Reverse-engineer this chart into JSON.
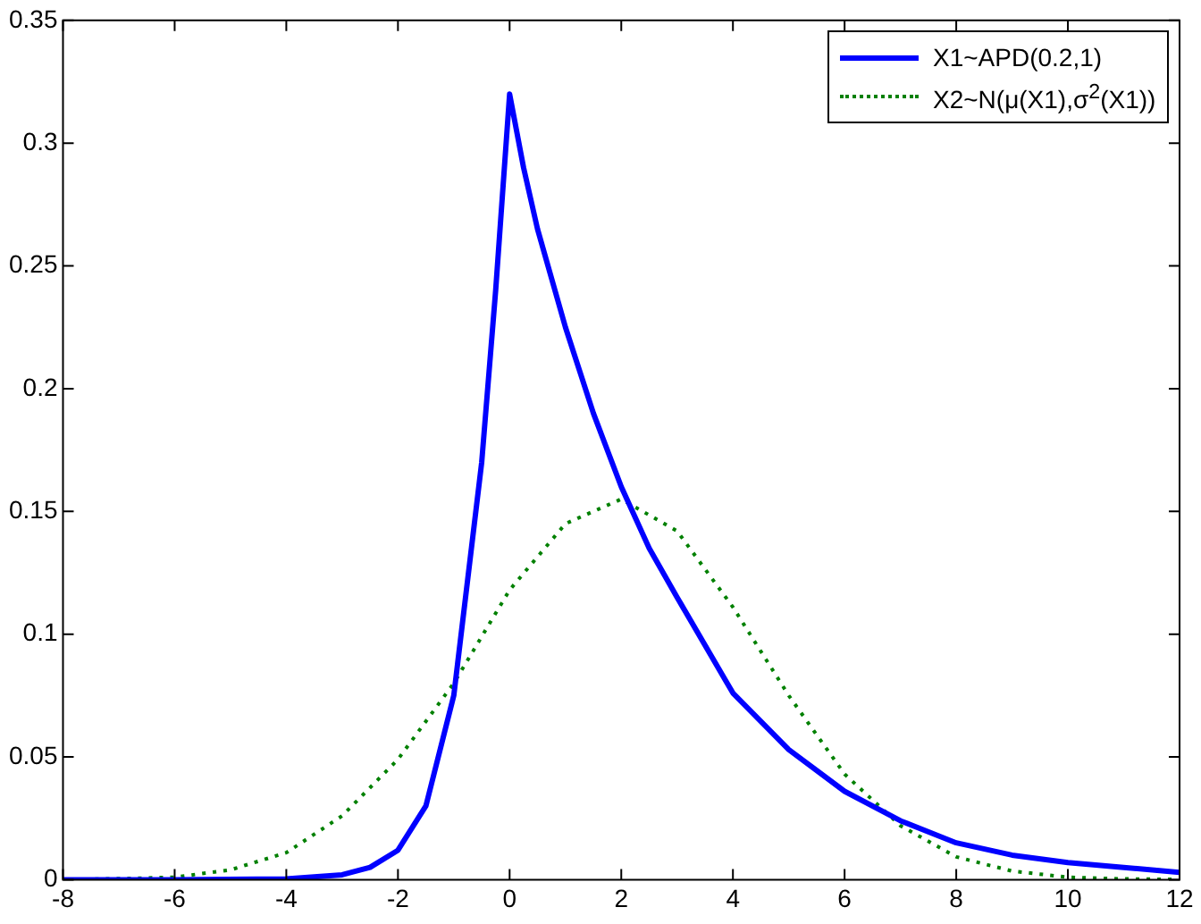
{
  "chart_data": {
    "type": "line",
    "xlim": [
      -8,
      12
    ],
    "xticks": [
      -8,
      -6,
      -4,
      -2,
      0,
      2,
      4,
      6,
      8,
      10,
      12
    ],
    "ylim": [
      0,
      0.35
    ],
    "yticks": [
      0,
      0.05,
      0.1,
      0.15,
      0.2,
      0.25,
      0.3,
      0.35
    ],
    "grid": false,
    "legend": "top right",
    "marker": "none",
    "series": [
      {
        "name": "X1~APD(0.2,1)",
        "color": "#0000ff",
        "line_style": "solid",
        "x": [
          -8,
          -6,
          -4,
          -3,
          -2.5,
          -2,
          -1.5,
          -1,
          -0.5,
          -0.25,
          0,
          0.25,
          0.5,
          1,
          1.5,
          2,
          2.5,
          3,
          4,
          5,
          6,
          7,
          8,
          9,
          10,
          11,
          12
        ],
        "values": [
          0,
          0,
          0.0003,
          0.002,
          0.005,
          0.012,
          0.03,
          0.075,
          0.17,
          0.24,
          0.32,
          0.29,
          0.265,
          0.225,
          0.19,
          0.16,
          0.135,
          0.115,
          0.076,
          0.053,
          0.036,
          0.024,
          0.015,
          0.01,
          0.007,
          0.005,
          0.003
        ]
      },
      {
        "name": "X2~N(μ(X1),σ$^{2}$(X1))",
        "color": "#008000",
        "line_style": "dotted",
        "x": [
          -8,
          -7,
          -6,
          -5,
          -4,
          -3,
          -2,
          -1,
          0,
          1,
          2,
          3,
          4,
          5,
          6,
          7,
          8,
          9,
          10,
          11,
          12
        ],
        "values": [
          0,
          0.0004,
          0.001,
          0.004,
          0.011,
          0.026,
          0.049,
          0.08,
          0.118,
          0.145,
          0.155,
          0.142,
          0.111,
          0.075,
          0.043,
          0.022,
          0.0093,
          0.0035,
          0.001,
          0.0003,
          0.0001
        ]
      }
    ]
  }
}
